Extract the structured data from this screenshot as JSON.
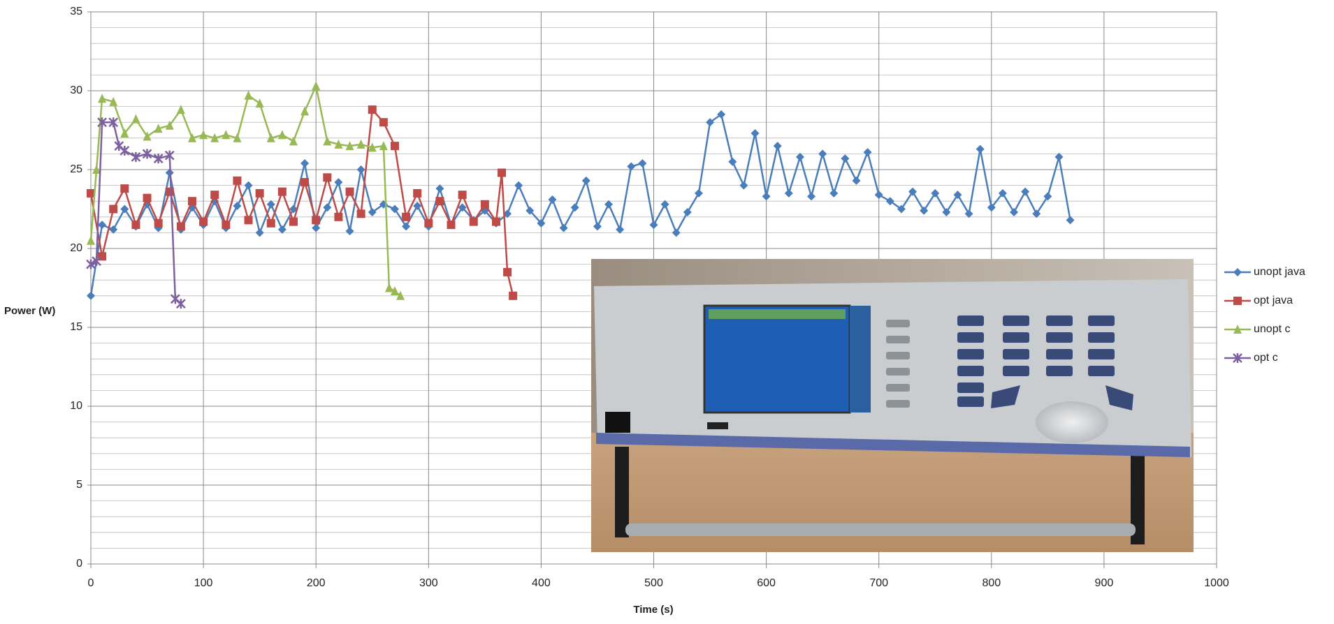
{
  "chart_data": {
    "type": "line",
    "x_label": "Time (s)",
    "y_label": "Power (W)",
    "xlim": [
      0,
      1000
    ],
    "xticks": [
      0,
      100,
      200,
      300,
      400,
      500,
      600,
      700,
      800,
      900,
      1000
    ],
    "ylim": [
      0,
      35
    ],
    "yticks": [
      0,
      5,
      10,
      15,
      20,
      25,
      30,
      35
    ],
    "grid": true,
    "minor_grid": true,
    "legend": "right",
    "series": [
      {
        "name": "unopt java",
        "color": "#4a7ebb",
        "marker": "diamond",
        "x": [
          0,
          10,
          20,
          30,
          40,
          50,
          60,
          70,
          80,
          90,
          100,
          110,
          120,
          130,
          140,
          150,
          160,
          170,
          180,
          190,
          200,
          210,
          220,
          230,
          240,
          250,
          260,
          270,
          280,
          290,
          300,
          310,
          320,
          330,
          340,
          350,
          360,
          370,
          380,
          390,
          400,
          410,
          420,
          430,
          440,
          450,
          460,
          470,
          480,
          490,
          500,
          510,
          520,
          530,
          540,
          550,
          560,
          570,
          580,
          590,
          600,
          610,
          620,
          630,
          640,
          650,
          660,
          670,
          680,
          690,
          700,
          710,
          720,
          730,
          740,
          750,
          760,
          770,
          780,
          790,
          800,
          810,
          820,
          830,
          840,
          850,
          860,
          870
        ],
        "values": [
          17,
          21.5,
          21.2,
          22.5,
          21.4,
          22.8,
          21.3,
          24.8,
          21.2,
          22.6,
          21.5,
          23.0,
          21.3,
          22.7,
          24.0,
          21.0,
          22.8,
          21.2,
          22.5,
          25.4,
          21.3,
          22.6,
          24.2,
          21.1,
          25.0,
          22.3,
          22.8,
          22.5,
          21.4,
          22.7,
          21.4,
          23.8,
          21.5,
          22.6,
          21.8,
          22.4,
          21.6,
          22.2,
          24.0,
          22.4,
          21.6,
          23.1,
          21.3,
          22.6,
          24.3,
          21.4,
          22.8,
          21.2,
          25.2,
          25.4,
          21.5,
          22.8,
          21.0,
          22.3,
          23.5,
          28.0,
          28.5,
          25.5,
          24.0,
          27.3,
          23.3,
          26.5,
          23.5,
          25.8,
          23.3,
          26.0,
          23.5,
          25.7,
          24.3,
          26.1,
          23.4,
          23.0,
          22.5,
          23.6,
          22.4,
          23.5,
          22.3,
          23.4,
          22.2,
          26.3,
          22.6,
          23.5,
          22.3,
          23.6,
          22.2,
          23.3,
          25.8,
          21.8
        ]
      },
      {
        "name": "opt java",
        "color": "#be4b48",
        "marker": "square",
        "x": [
          0,
          10,
          20,
          30,
          40,
          50,
          60,
          70,
          80,
          90,
          100,
          110,
          120,
          130,
          140,
          150,
          160,
          170,
          180,
          190,
          200,
          210,
          220,
          230,
          240,
          250,
          260,
          270,
          280,
          290,
          300,
          310,
          320,
          330,
          340,
          350,
          360,
          365,
          370,
          375
        ],
        "values": [
          23.5,
          19.5,
          22.5,
          23.8,
          21.5,
          23.2,
          21.6,
          23.6,
          21.4,
          23.0,
          21.7,
          23.4,
          21.5,
          24.3,
          21.8,
          23.5,
          21.6,
          23.6,
          21.7,
          24.2,
          21.8,
          24.5,
          22.0,
          23.6,
          22.2,
          28.8,
          28.0,
          26.5,
          22.0,
          23.5,
          21.6,
          23.0,
          21.5,
          23.4,
          21.7,
          22.8,
          21.7,
          24.8,
          18.5,
          17.0
        ]
      },
      {
        "name": "unopt c",
        "color": "#98b954",
        "marker": "triangle",
        "x": [
          0,
          5,
          10,
          20,
          30,
          40,
          50,
          60,
          70,
          80,
          90,
          100,
          110,
          120,
          130,
          140,
          150,
          160,
          170,
          180,
          190,
          200,
          210,
          220,
          230,
          240,
          250,
          260,
          265,
          270,
          275
        ],
        "values": [
          20.5,
          25.0,
          29.5,
          29.3,
          27.3,
          28.2,
          27.1,
          27.6,
          27.8,
          28.8,
          27.0,
          27.2,
          27.0,
          27.2,
          27.0,
          29.7,
          29.2,
          27.0,
          27.2,
          26.8,
          28.7,
          30.3,
          26.8,
          26.6,
          26.5,
          26.6,
          26.4,
          26.5,
          17.5,
          17.3,
          17.0
        ]
      },
      {
        "name": "opt c",
        "color": "#7d60a0",
        "marker": "star",
        "x": [
          0,
          5,
          10,
          20,
          25,
          30,
          40,
          50,
          60,
          70,
          75,
          80
        ],
        "values": [
          19,
          19.2,
          28,
          28.0,
          26.5,
          26.2,
          25.8,
          26.0,
          25.7,
          25.9,
          16.8,
          16.5
        ]
      }
    ]
  }
}
